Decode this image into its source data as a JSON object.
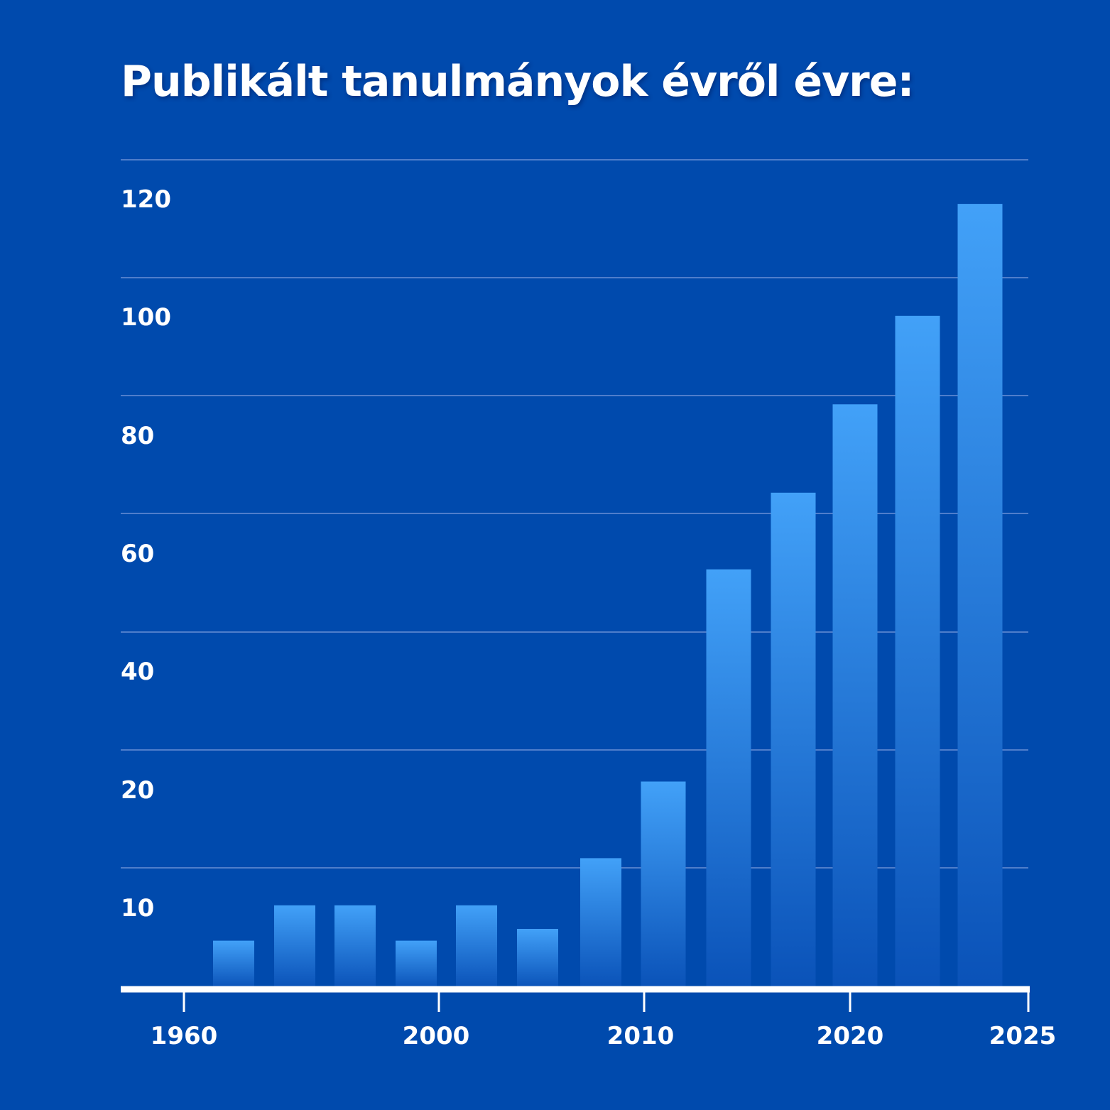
{
  "chart_data": {
    "type": "bar",
    "title": "Publikált tanulmányok évről évre:",
    "xlabel": "",
    "ylabel": "",
    "y_tick_labels": [
      "10",
      "20",
      "40",
      "60",
      "80",
      "100",
      "120"
    ],
    "x_tick_labels": [
      "1960",
      "2000",
      "2010",
      "2020",
      "2025"
    ],
    "values": [
      8,
      14,
      14,
      8,
      14,
      10,
      22,
      35,
      71,
      84,
      99,
      114,
      133
    ],
    "grid": true,
    "legend": "none",
    "colors": {
      "background": "#004aad",
      "bar_top": "#42a1f8",
      "bar_bottom": "#0a52b8",
      "axis": "#ffffff",
      "grid": "#4f7ecb"
    }
  }
}
